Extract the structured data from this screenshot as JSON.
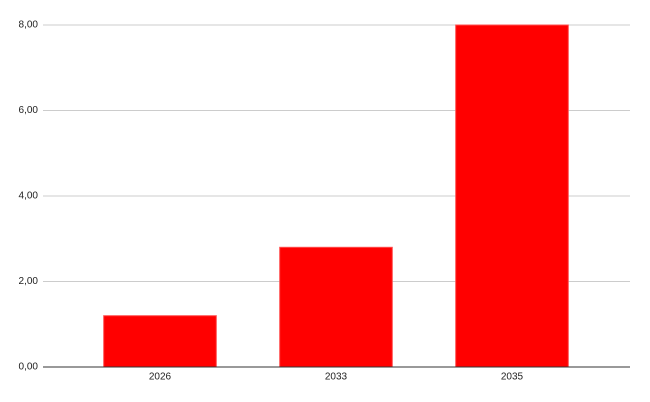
{
  "chart_data": {
    "type": "bar",
    "categories": [
      "2026",
      "2033",
      "2035"
    ],
    "values": [
      1.2,
      2.8,
      8.0
    ],
    "color": "#ff0000",
    "ylim": [
      0,
      8
    ],
    "yticks": [
      {
        "value": 0,
        "label": "0,00"
      },
      {
        "value": 2,
        "label": "2,00"
      },
      {
        "value": 4,
        "label": "4,00"
      },
      {
        "value": 6,
        "label": "6,00"
      },
      {
        "value": 8,
        "label": "8,00"
      }
    ],
    "grid": true
  }
}
